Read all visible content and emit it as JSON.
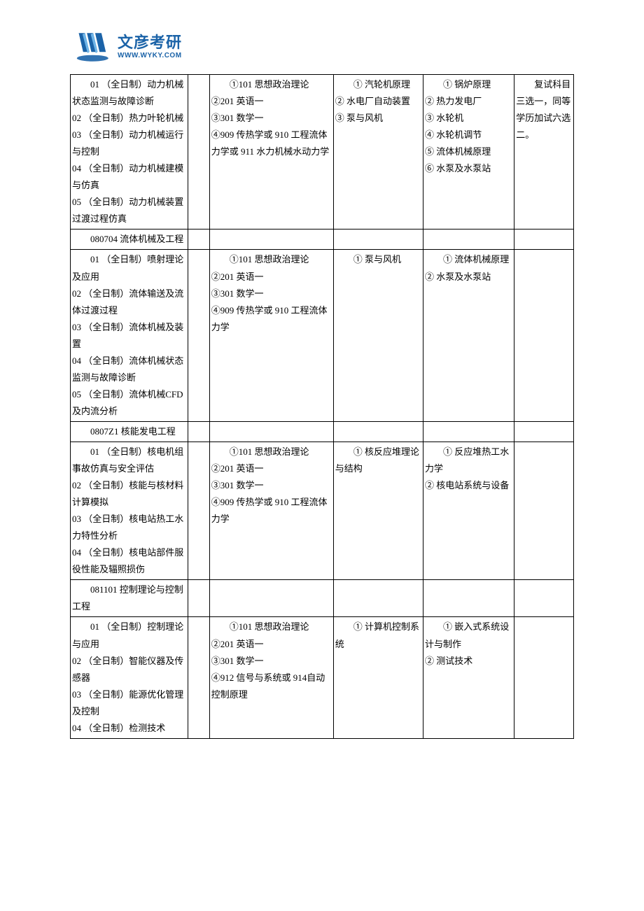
{
  "logo": {
    "cn": "文彦考研",
    "url": "WWW.WYKY.COM",
    "color": "#1b63a8"
  },
  "table": {
    "rows": [
      {
        "col1": [
          "　　01 （全日制）动力机械状态监测与故障诊断",
          "02 （全日制）热力叶轮机械",
          "03 （全日制）动力机械运行与控制",
          "04 （全日制）动力机械建模与仿真",
          "05 （全日制）动力机械装置过渡过程仿真"
        ],
        "col2": "",
        "col3": [
          "　　①101 思想政治理论",
          "②201 英语一",
          "③301 数学一",
          "④909 传热学或 910 工程流体力学或 911 水力机械水动力学"
        ],
        "col4": [
          "　　① 汽轮机原理",
          "② 水电厂自动装置",
          "③ 泵与风机"
        ],
        "col5": [
          "　　① 锅炉原理",
          "② 热力发电厂",
          "③ 水轮机",
          "④ 水轮机调节",
          "⑤ 流体机械原理",
          "⑥ 水泵及水泵站"
        ],
        "col6": [
          "　　复试科目三选一，同等学历加试六选二。"
        ]
      },
      {
        "col1": [
          "　　080704 流体机械及工程"
        ],
        "col2": "",
        "col3": [],
        "col4": [],
        "col5": [],
        "col6": []
      },
      {
        "col1": [
          "　　01 （全日制）喷射理论及应用",
          "02 （全日制）流体输送及流体过渡过程",
          "03 （全日制）流体机械及装置",
          "04 （全日制）流体机械状态监测与故障诊断",
          "05 （全日制）流体机械CFD 及内流分析"
        ],
        "col2": "",
        "col3": [
          "　　①101 思想政治理论",
          "②201 英语一",
          "③301 数学一",
          "④909 传热学或 910 工程流体力学"
        ],
        "col4": [
          "　　① 泵与风机"
        ],
        "col5": [
          "　　① 流体机械原理",
          "② 水泵及水泵站"
        ],
        "col6": []
      },
      {
        "col1": [
          "　　0807Z1 核能发电工程"
        ],
        "col2": "",
        "col3": [],
        "col4": [],
        "col5": [],
        "col6": []
      },
      {
        "col1": [
          "　　01 （全日制）核电机组事故仿真与安全评估",
          "02 （全日制）核能与核材料计算模拟",
          "03 （全日制）核电站热工水力特性分析",
          "04 （全日制）核电站部件服役性能及辐照损伤"
        ],
        "col2": "",
        "col3": [
          "　　①101 思想政治理论",
          "②201 英语一",
          "③301 数学一",
          "④909 传热学或 910 工程流体力学"
        ],
        "col4": [
          "　　① 核反应堆理论与结构"
        ],
        "col5": [
          "　　① 反应堆热工水力学",
          "② 核电站系统与设备"
        ],
        "col6": []
      },
      {
        "col1": [
          "　　081101 控制理论与控制工程"
        ],
        "col2": "",
        "col3": [],
        "col4": [],
        "col5": [],
        "col6": []
      },
      {
        "col1": [
          "　　01 （全日制）控制理论与应用",
          "02 （全日制）智能仪器及传感器",
          "03 （全日制）能源优化管理及控制",
          "04 （全日制）检测技术"
        ],
        "col2": "",
        "col3": [
          "　　①101 思想政治理论",
          "②201 英语一",
          "③301 数学一",
          "④912 信号与系统或 914自动控制原理"
        ],
        "col4": [
          "　　① 计算机控制系统"
        ],
        "col5": [
          "　　① 嵌入式系统设计与制作",
          "② 测试技术"
        ],
        "col6": []
      }
    ]
  }
}
